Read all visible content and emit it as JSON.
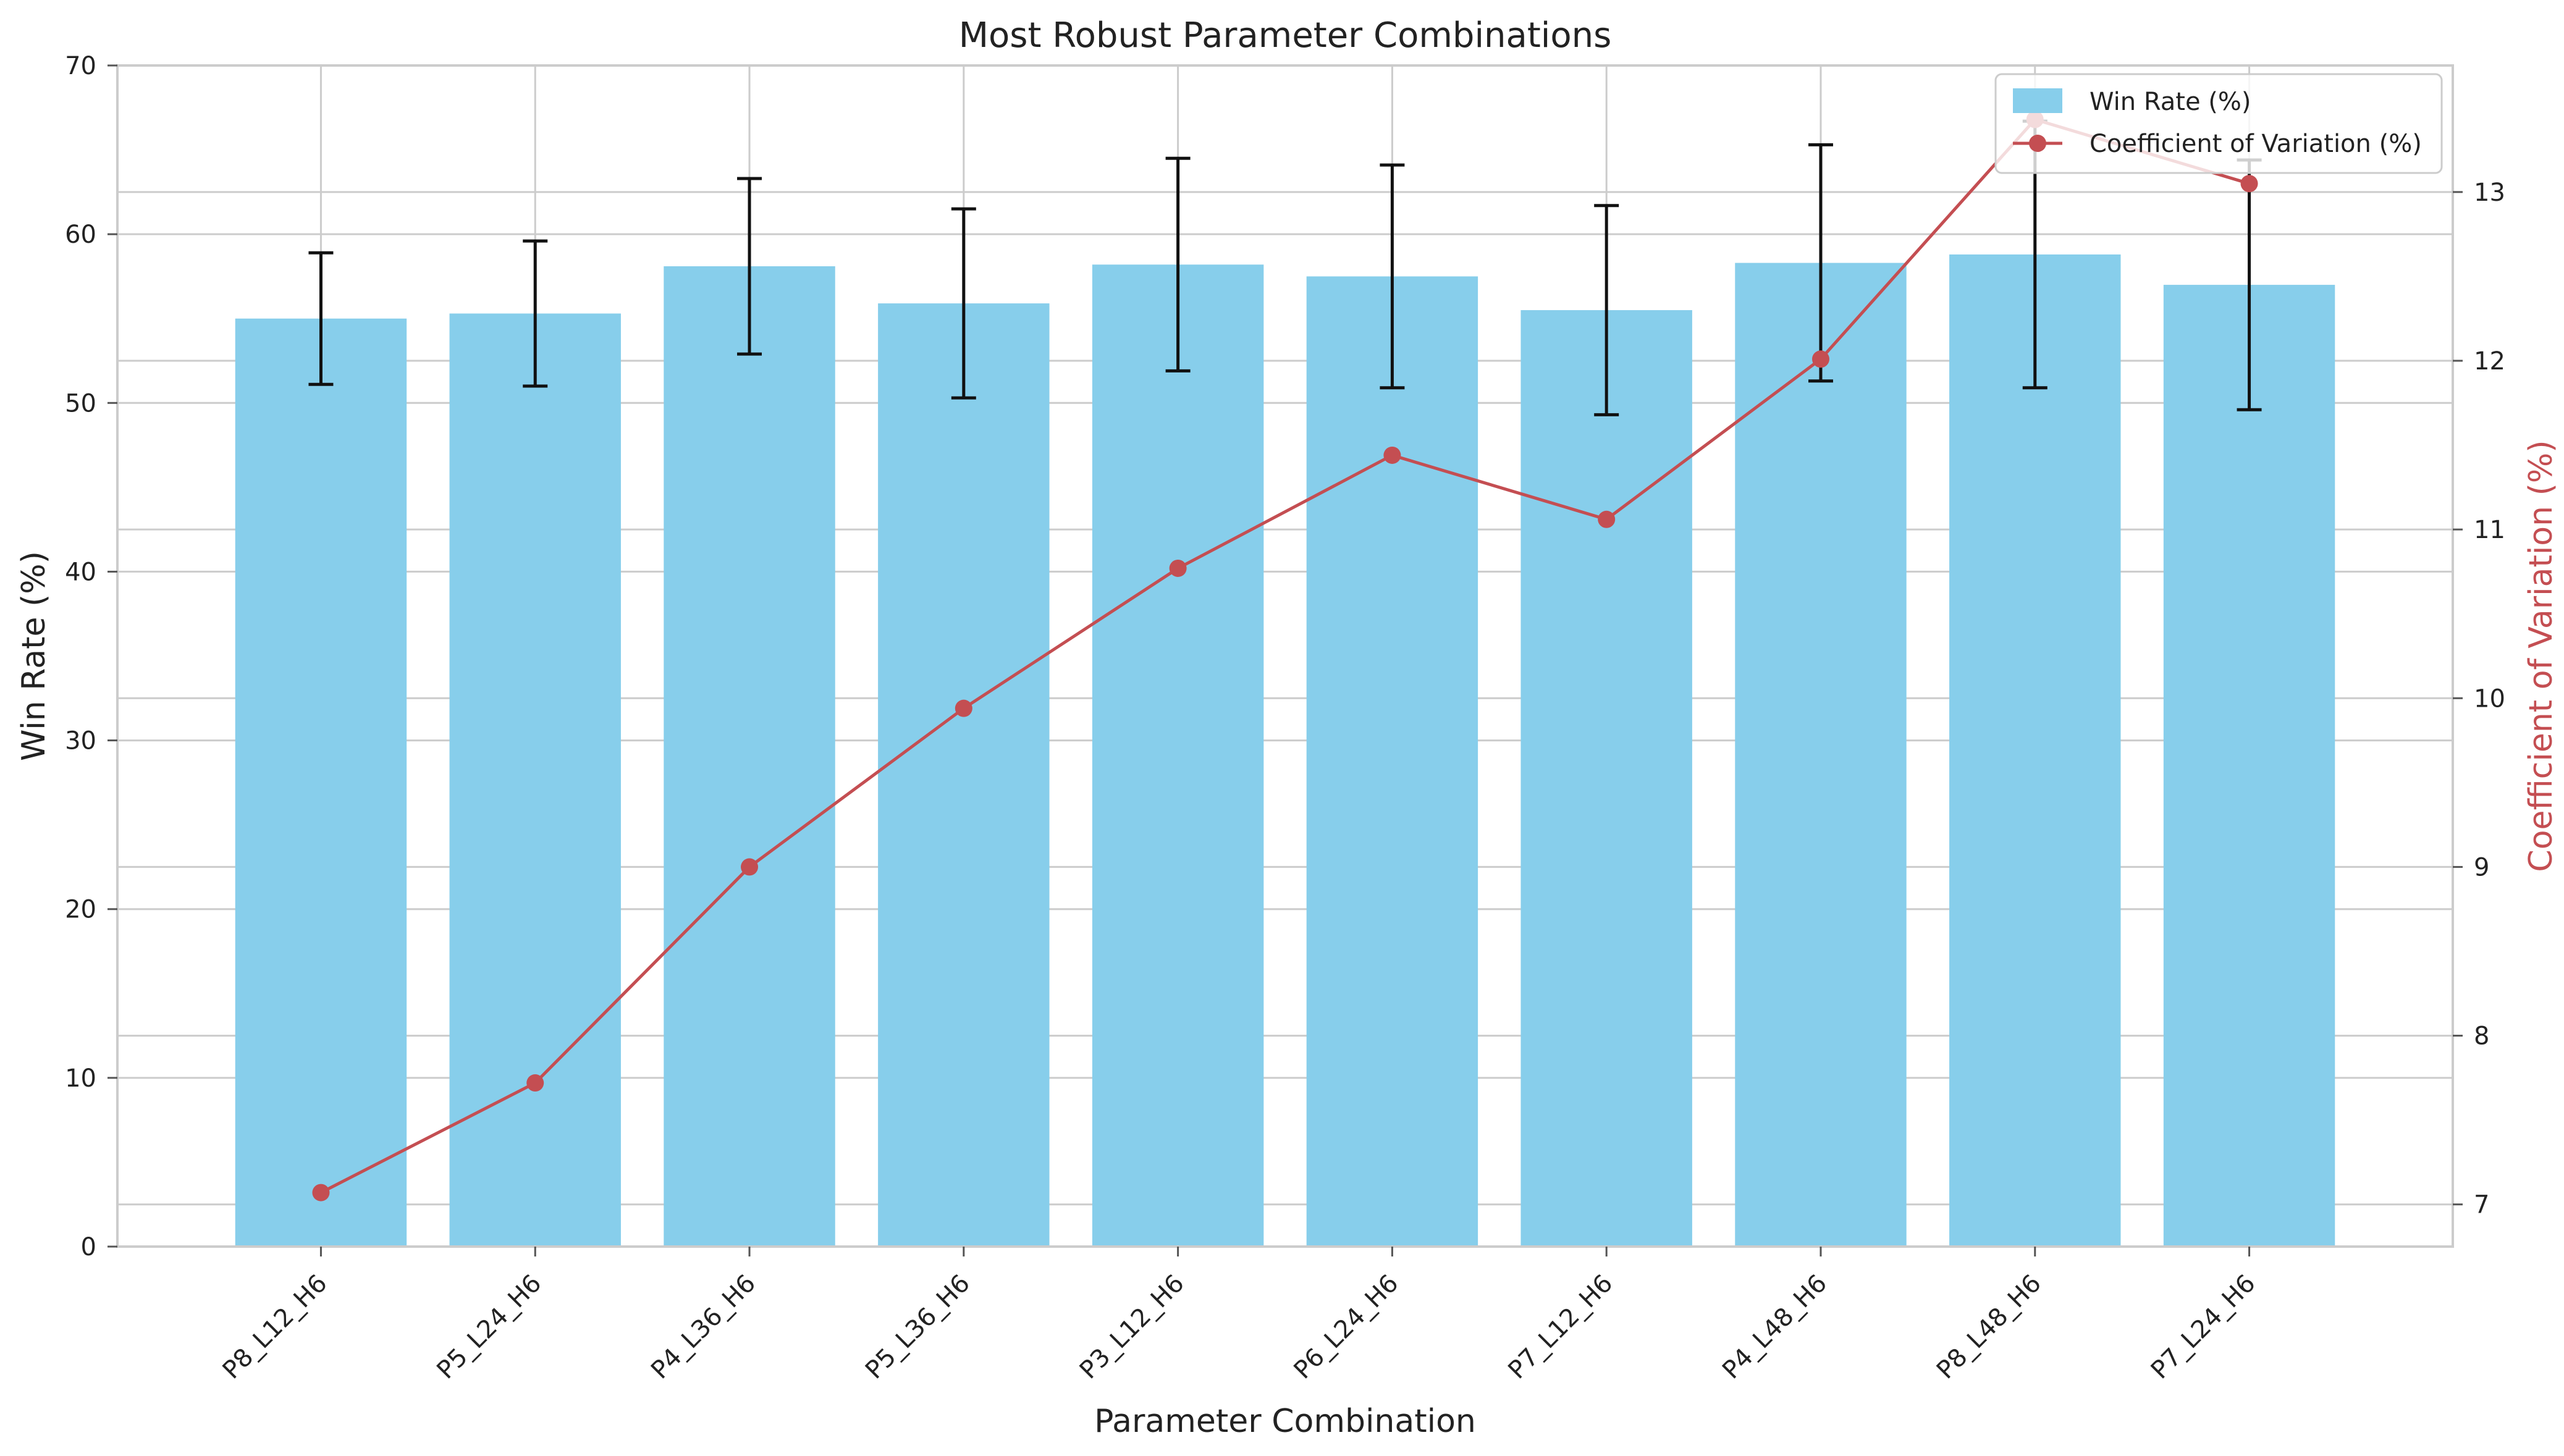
{
  "chart_data": {
    "type": "bar",
    "title": "Most Robust Parameter Combinations",
    "xlabel": "Parameter Combination",
    "ylabel": "Win Rate (%)",
    "y2label": "Coefficient of Variation (%)",
    "categories": [
      "P8_L12_H6",
      "P5_L24_H6",
      "P4_L36_H6",
      "P5_L36_H6",
      "P3_L12_H6",
      "P6_L24_H6",
      "P7_L12_H6",
      "P4_L48_H6",
      "P8_L48_H6",
      "P7_L24_H6"
    ],
    "ylim": [
      0,
      70
    ],
    "y2lim": [
      6.75,
      13.75
    ],
    "yticks": [
      0,
      10,
      20,
      30,
      40,
      50,
      60,
      70
    ],
    "y2ticks": [
      7,
      8,
      9,
      10,
      11,
      12,
      13
    ],
    "grid": true,
    "legend_position": "upper right",
    "series": [
      {
        "name": "Win Rate (%)",
        "type": "bar",
        "axis": "left",
        "color": "#87CEEB",
        "values": [
          55.0,
          55.3,
          58.1,
          55.9,
          58.2,
          57.5,
          55.5,
          58.3,
          58.8,
          57.0
        ],
        "error": [
          3.9,
          4.3,
          5.2,
          5.6,
          6.3,
          6.6,
          6.2,
          7.0,
          7.9,
          7.4
        ]
      },
      {
        "name": "Coefficient of Variation (%)",
        "type": "line",
        "axis": "right",
        "color": "#C44E52",
        "values": [
          7.07,
          7.72,
          9.0,
          9.94,
          10.77,
          11.44,
          11.06,
          12.01,
          13.43,
          13.05
        ]
      }
    ]
  }
}
